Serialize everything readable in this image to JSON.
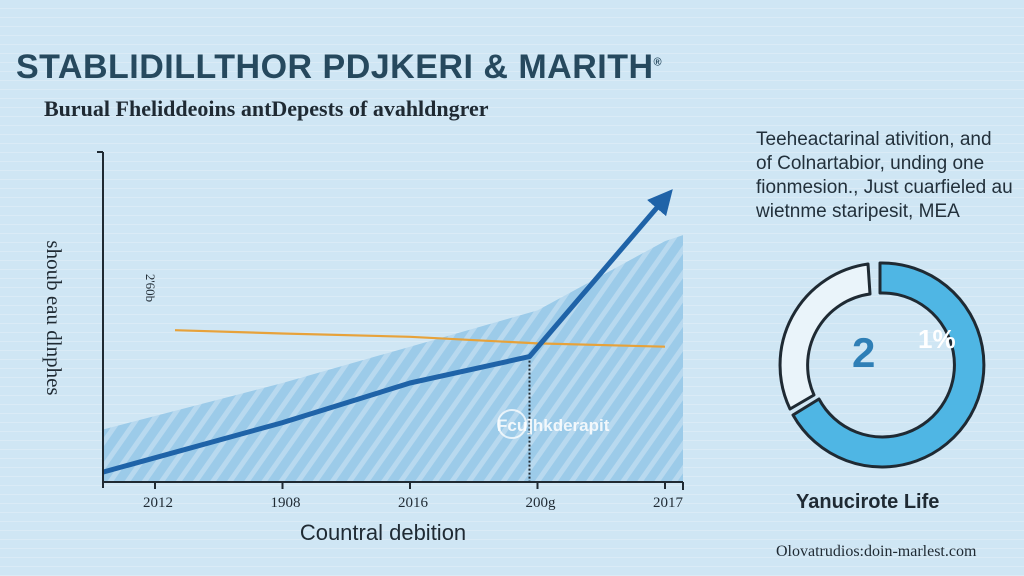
{
  "header": {
    "title": "STABLIDILLTHOR PDJKERI & MARITH",
    "title_mark": "®",
    "subtitle": "Burual Fheliddeoins antDepests of avahldngrer"
  },
  "side_text": {
    "lines": [
      "Teeheactarinal ativition, and",
      "of Colnartabior, unding one",
      "fionmesion., Just cuarfieled au",
      "wietnme staripesit,  MEA"
    ]
  },
  "donut": {
    "value_left": "2",
    "value_right": "1%",
    "label": "Yanucirote Life",
    "colors": {
      "ring": "#4fb6e4",
      "stroke": "#1f2a33"
    }
  },
  "footer": {
    "text": "Olovatrudios:doin-marlest.com"
  },
  "colors": {
    "area_fill": "#9ccbe9",
    "trend_line": "#1f63a8",
    "flat_line": "#e7a23a",
    "axis": "#1f2a33"
  },
  "chart_data": {
    "type": "line",
    "categories": [
      "2012",
      "1908",
      "2016",
      "200g",
      "2017"
    ],
    "xlabel": "Countral debition",
    "ylabel": "shoub eau dlnphes",
    "ytick_label": "2'60b",
    "ylim": [
      0,
      100
    ],
    "annotation": "Fcu]hkderapit",
    "series": [
      {
        "kind": "area",
        "values": [
          20,
          30,
          41,
          52,
          73
        ]
      },
      {
        "kind": "trend-arrow",
        "values": [
          3,
          18,
          30,
          38,
          86
        ]
      },
      {
        "kind": "flat-line",
        "values": [
          46,
          45,
          44,
          42,
          41
        ]
      }
    ]
  }
}
